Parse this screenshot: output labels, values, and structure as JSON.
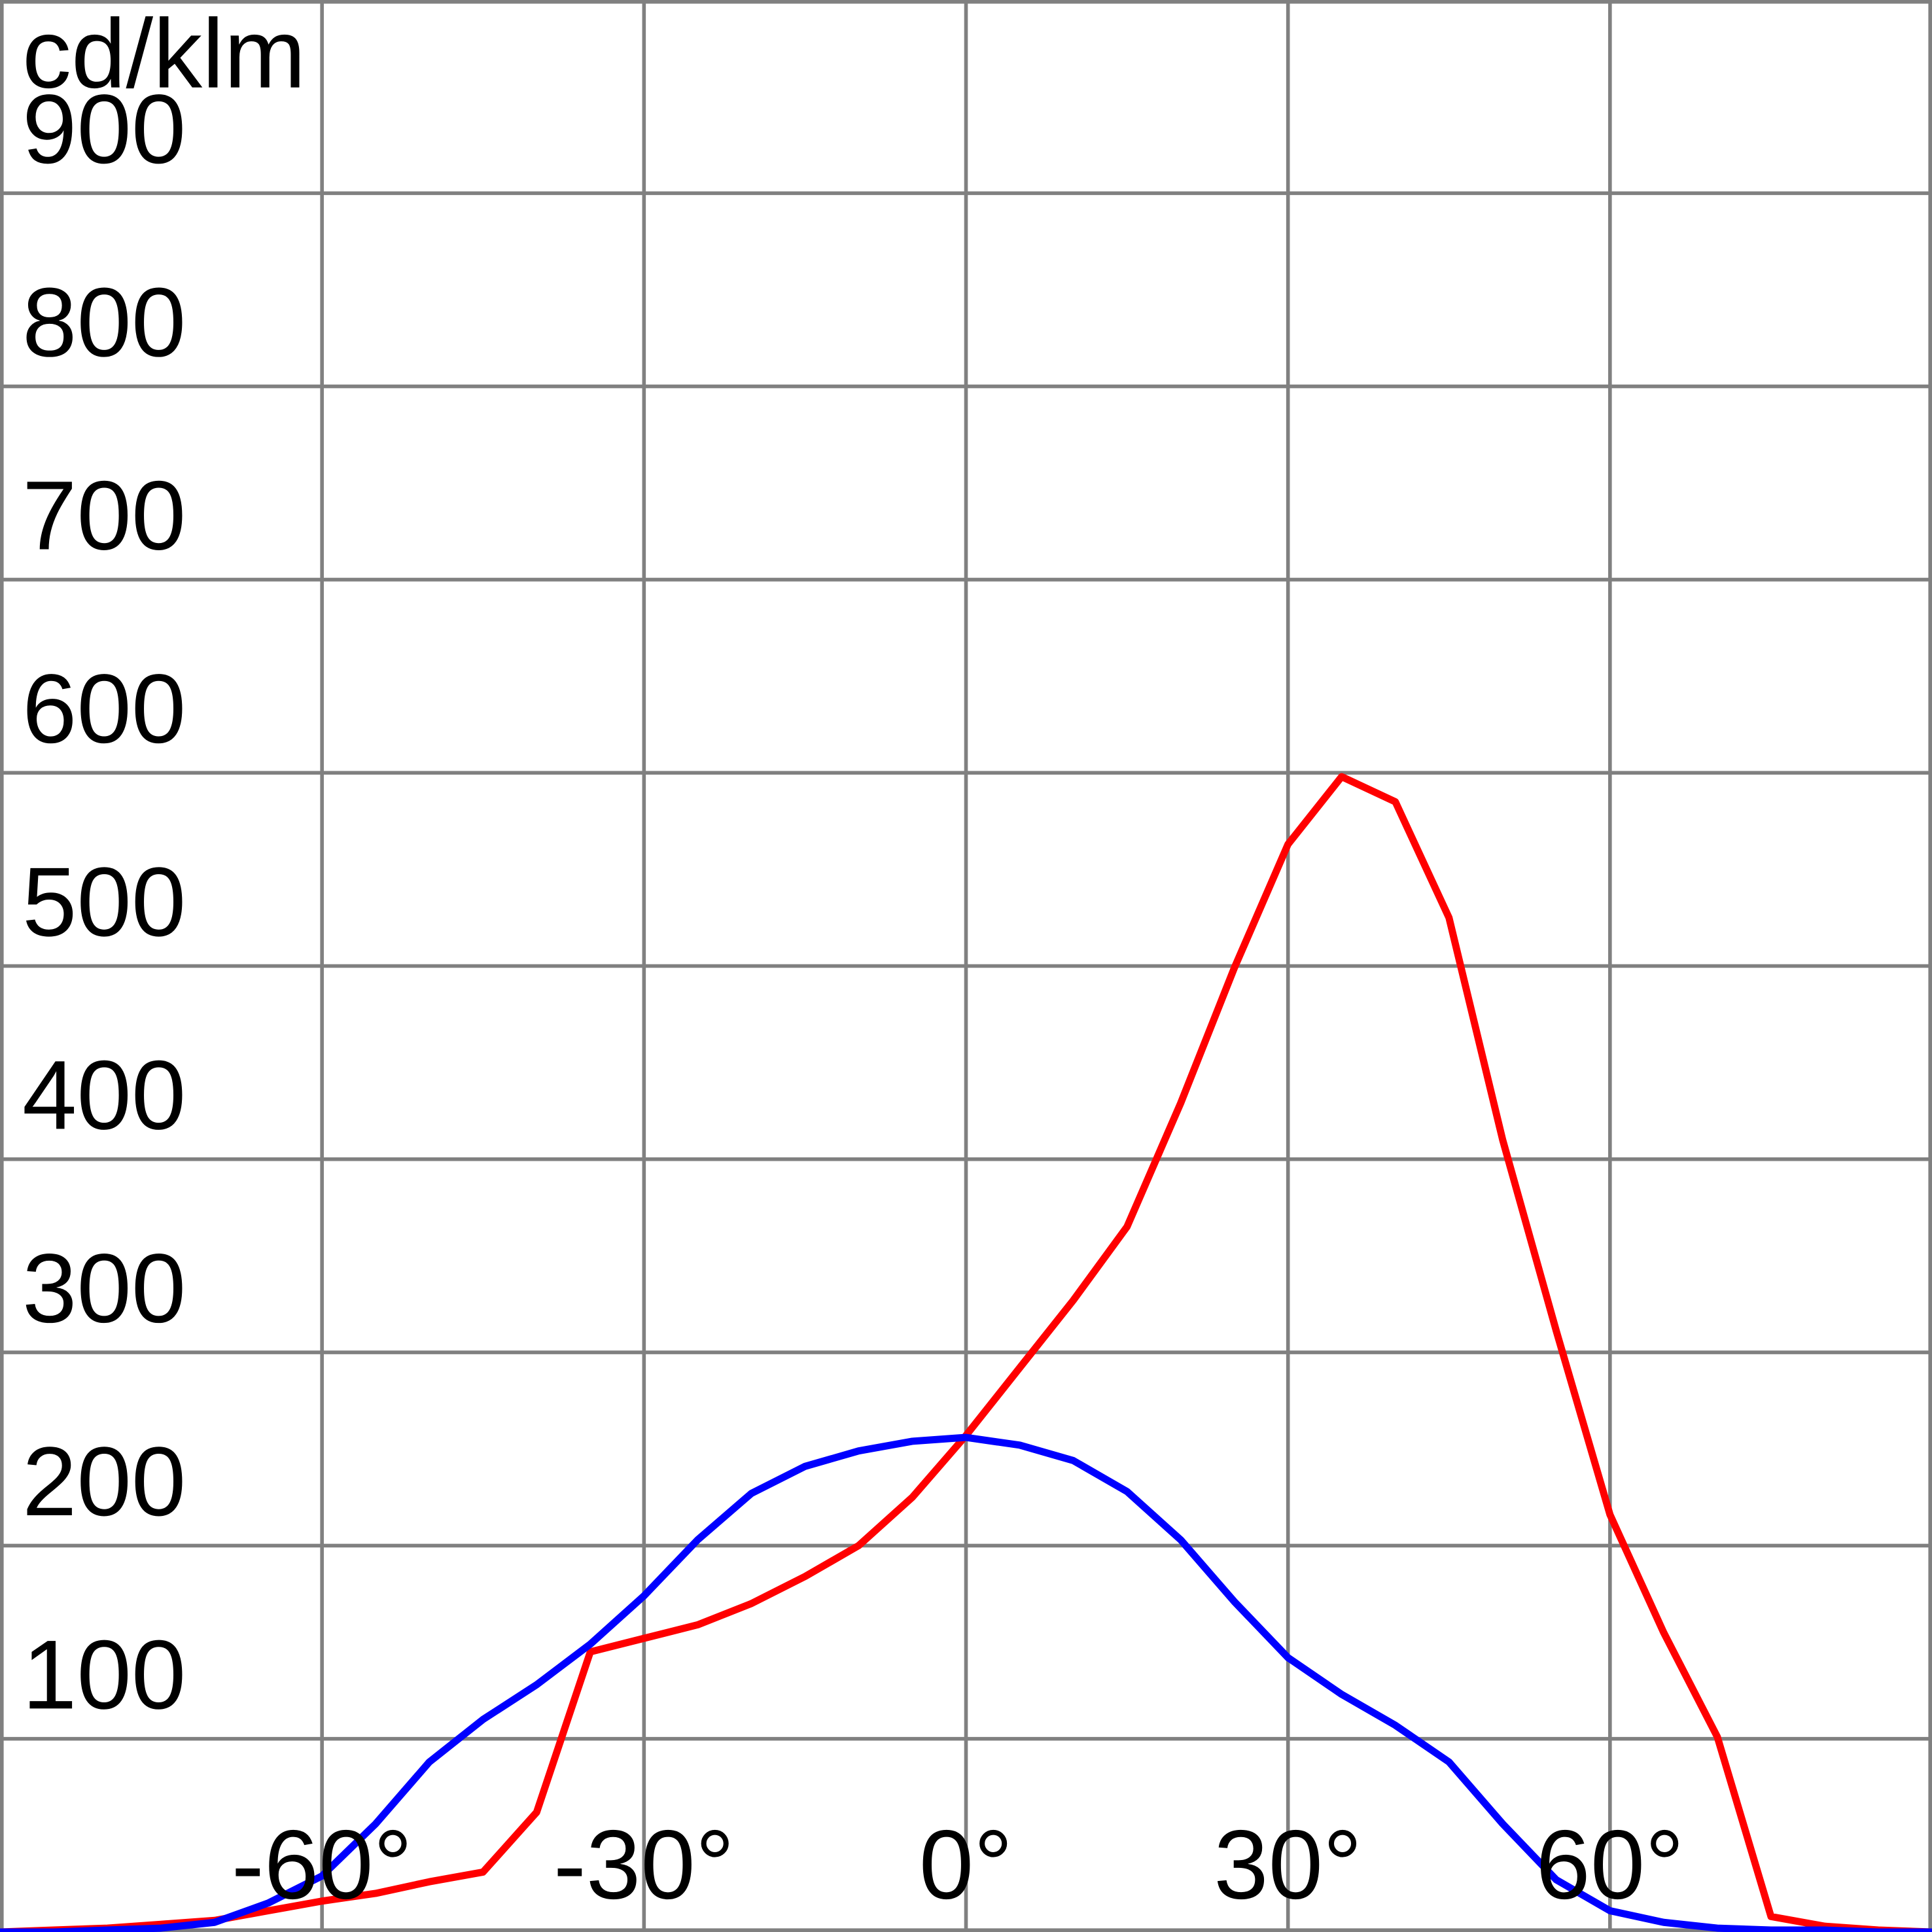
{
  "chart_data": {
    "type": "line",
    "y_label": "cd/klm",
    "x": [
      -90,
      -85,
      -80,
      -75,
      -70,
      -65,
      -60,
      -55,
      -50,
      -45,
      -40,
      -35,
      -30,
      -25,
      -20,
      -15,
      -10,
      -5,
      0,
      5,
      10,
      15,
      20,
      25,
      30,
      35,
      40,
      45,
      50,
      55,
      60,
      65,
      70,
      75,
      80,
      85,
      90
    ],
    "series": [
      {
        "color": "#ff0000",
        "values": [
          0,
          1,
          2,
          4,
          6,
          11,
          16,
          20,
          26,
          31,
          62,
          145,
          152,
          159,
          170,
          184,
          200,
          225,
          257,
          292,
          327,
          365,
          429,
          499,
          563,
          598,
          585,
          525,
          410,
          311,
          216,
          155,
          101,
          8,
          3,
          1,
          0
        ]
      },
      {
        "color": "#0000ff",
        "values": [
          0,
          0,
          1,
          2,
          5,
          15,
          29,
          56,
          88,
          110,
          128,
          149,
          174,
          203,
          227,
          241,
          249,
          254,
          256,
          252,
          244,
          228,
          203,
          171,
          142,
          123,
          107,
          88,
          56,
          27,
          11,
          5,
          2,
          1,
          1,
          0,
          0
        ]
      }
    ],
    "xlim": [
      -90,
      90
    ],
    "xticks": [
      {
        "value": -60,
        "label": "-60°"
      },
      {
        "value": -30,
        "label": "-30°"
      },
      {
        "value": 0,
        "label": "0°"
      },
      {
        "value": 30,
        "label": "30°"
      },
      {
        "value": 60,
        "label": "60°"
      }
    ],
    "ylim": [
      0,
      1000
    ],
    "yticks": [
      100,
      200,
      300,
      400,
      500,
      600,
      700,
      800,
      900
    ],
    "grid": true
  }
}
